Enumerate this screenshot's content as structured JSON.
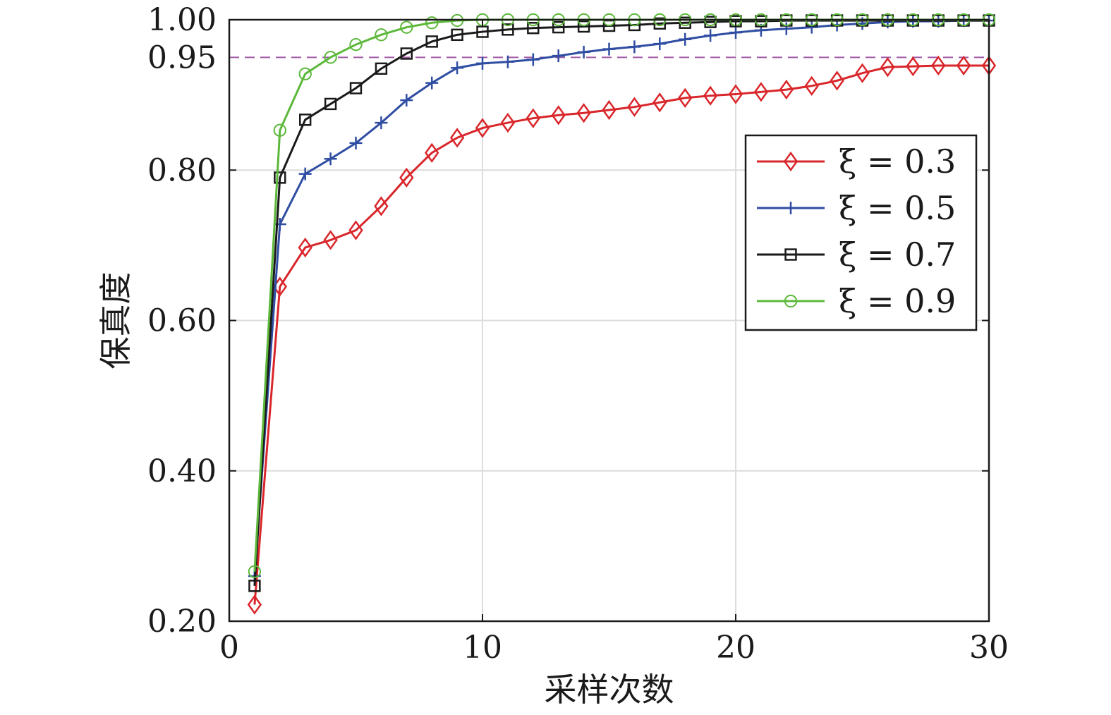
{
  "chart_data": {
    "type": "line",
    "xlabel": "采样次数",
    "ylabel": "保真度",
    "xlim": [
      0,
      30
    ],
    "ylim": [
      0.2,
      1.0
    ],
    "xticks": [
      "0",
      "10",
      "20",
      "30"
    ],
    "yticks": [
      "0.20",
      "0.40",
      "0.60",
      "0.80",
      "0.95",
      "1.00"
    ],
    "grid": true,
    "legend_position": "right",
    "reference_line": {
      "y": 0.95,
      "style": "dashed",
      "color": "#a05ba5"
    },
    "x": [
      1,
      2,
      3,
      4,
      5,
      6,
      7,
      8,
      9,
      10,
      11,
      12,
      13,
      14,
      15,
      16,
      17,
      18,
      19,
      20,
      21,
      22,
      23,
      24,
      25,
      26,
      27,
      28,
      29,
      30
    ],
    "series": [
      {
        "name": "ξ = 0.3",
        "color": "#d9262b",
        "marker": "diamond",
        "values": [
          0.222,
          0.645,
          0.697,
          0.707,
          0.72,
          0.752,
          0.79,
          0.823,
          0.843,
          0.856,
          0.863,
          0.869,
          0.873,
          0.876,
          0.88,
          0.884,
          0.89,
          0.896,
          0.899,
          0.901,
          0.904,
          0.907,
          0.912,
          0.919,
          0.929,
          0.937,
          0.938,
          0.939,
          0.939,
          0.939
        ]
      },
      {
        "name": "ξ = 0.5",
        "color": "#2f4da2",
        "marker": "plus",
        "values": [
          0.26,
          0.728,
          0.795,
          0.815,
          0.836,
          0.863,
          0.893,
          0.916,
          0.936,
          0.942,
          0.944,
          0.947,
          0.952,
          0.957,
          0.961,
          0.964,
          0.968,
          0.974,
          0.979,
          0.983,
          0.986,
          0.988,
          0.99,
          0.993,
          0.995,
          0.997,
          0.998,
          0.998,
          0.999,
          0.999
        ]
      },
      {
        "name": "ξ = 0.7",
        "color": "#1a1a1a",
        "marker": "square",
        "values": [
          0.247,
          0.79,
          0.867,
          0.888,
          0.909,
          0.935,
          0.955,
          0.971,
          0.98,
          0.984,
          0.987,
          0.989,
          0.99,
          0.991,
          0.992,
          0.993,
          0.995,
          0.996,
          0.997,
          0.998,
          0.998,
          0.999,
          0.999,
          0.999,
          0.999,
          0.999,
          0.999,
          0.999,
          0.999,
          0.999
        ]
      },
      {
        "name": "ξ = 0.9",
        "color": "#5cb83a",
        "marker": "circle",
        "values": [
          0.266,
          0.853,
          0.928,
          0.95,
          0.967,
          0.98,
          0.99,
          0.996,
          0.999,
          1.0,
          1.0,
          1.0,
          1.0,
          1.0,
          1.0,
          1.0,
          1.0,
          1.0,
          1.0,
          1.0,
          1.0,
          1.0,
          1.0,
          1.0,
          1.0,
          1.0,
          1.0,
          1.0,
          1.0,
          1.0
        ]
      }
    ]
  }
}
